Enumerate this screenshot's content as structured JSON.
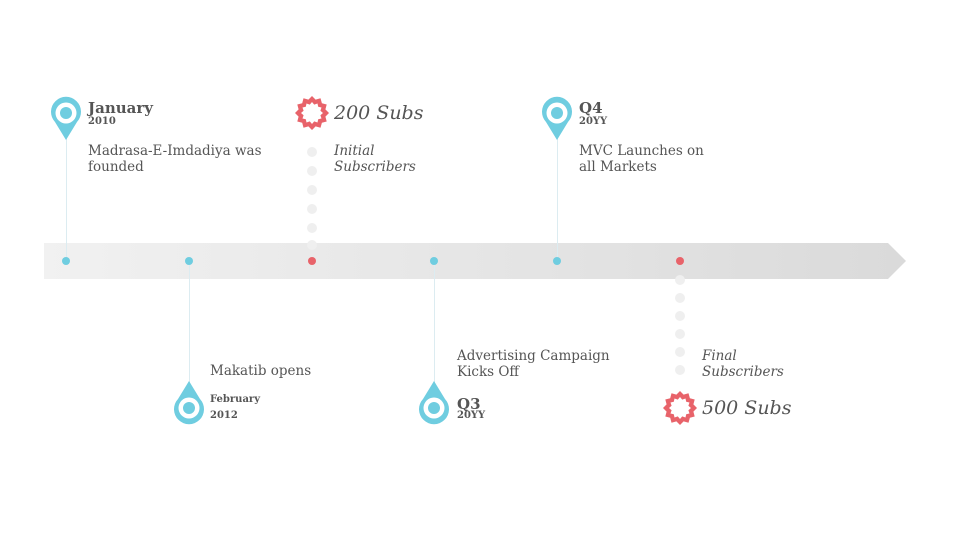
{
  "colors": {
    "accent_blue": "#6fcde0",
    "accent_red": "#e8636a",
    "arrow_gray": "#e6e6e6",
    "text": "#555555"
  },
  "milestones": [
    {
      "title": "January",
      "sub": "2010",
      "text": "Madrasa-E-Imdadiya was founded"
    },
    {
      "title": "",
      "sub_line1": "February",
      "sub_line2": "2012",
      "text": "Makatib opens"
    },
    {
      "title": "Q3",
      "sub": "20YY",
      "text": "Advertising Campaign Kicks Off"
    },
    {
      "title": "Q4",
      "sub": "20YY",
      "text": "MVC Launches on all Markets"
    }
  ],
  "subscriber_milestones": [
    {
      "value": "200 Subs",
      "caption": "Initial Subscribers"
    },
    {
      "value": "500 Subs",
      "caption": "Final Subscribers"
    }
  ]
}
